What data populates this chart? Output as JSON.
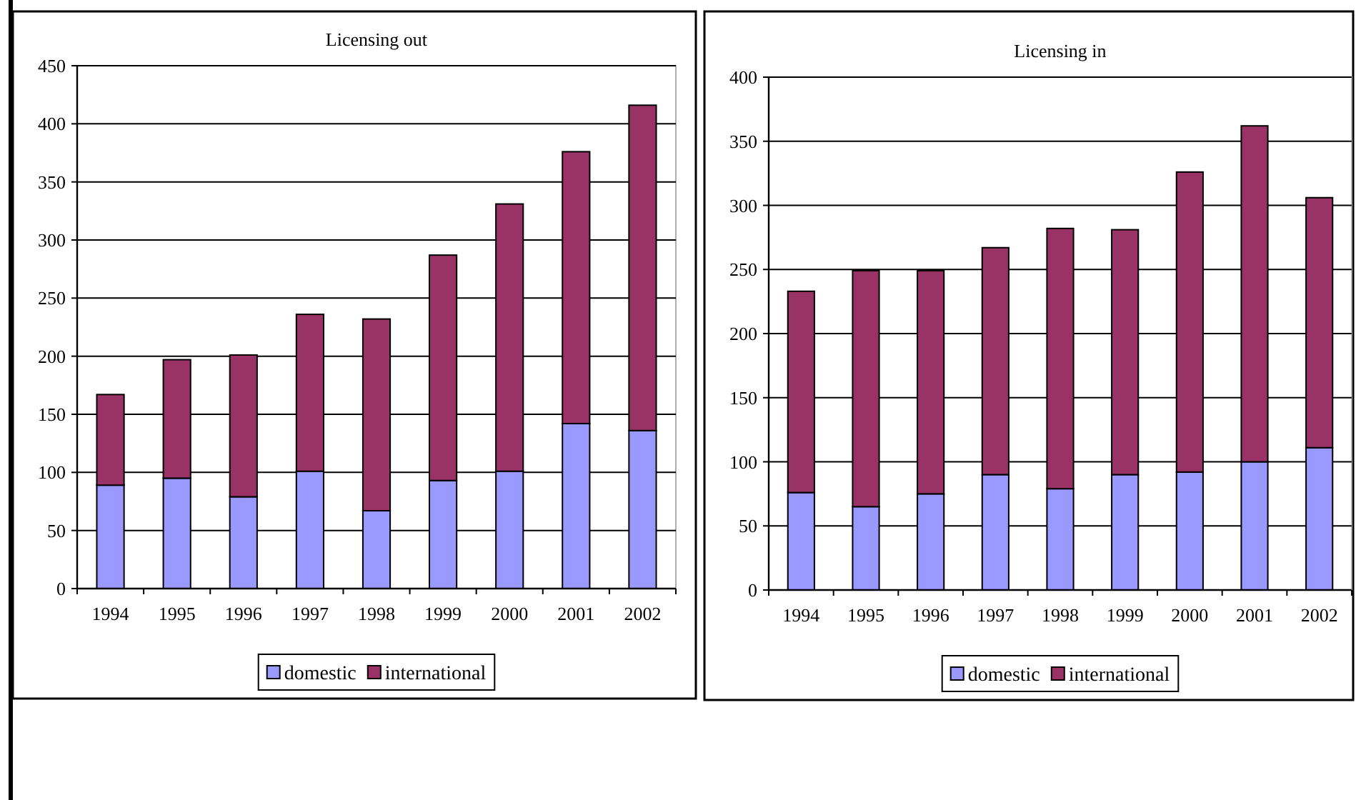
{
  "chart_data": [
    {
      "type": "bar",
      "title": "Licensing out",
      "categories": [
        "1994",
        "1995",
        "1996",
        "1997",
        "1998",
        "1999",
        "2000",
        "2001",
        "2002"
      ],
      "stacked": true,
      "series": [
        {
          "name": "domestic",
          "color": "#9999ff",
          "values": [
            89,
            95,
            79,
            101,
            67,
            93,
            101,
            142,
            136
          ]
        },
        {
          "name": "international",
          "color": "#993366",
          "values": [
            78,
            102,
            122,
            135,
            165,
            194,
            230,
            234,
            280
          ]
        }
      ],
      "ylim": [
        0,
        450
      ],
      "yticks": [
        0,
        50,
        100,
        150,
        200,
        250,
        300,
        350,
        400,
        450
      ],
      "grid": "y",
      "legend": "bottom"
    },
    {
      "type": "bar",
      "title": "Licensing in",
      "categories": [
        "1994",
        "1995",
        "1996",
        "1997",
        "1998",
        "1999",
        "2000",
        "2001",
        "2002"
      ],
      "stacked": true,
      "series": [
        {
          "name": "domestic",
          "color": "#9999ff",
          "values": [
            76,
            65,
            75,
            90,
            79,
            90,
            92,
            100,
            111
          ]
        },
        {
          "name": "international",
          "color": "#993366",
          "values": [
            157,
            184,
            174,
            177,
            203,
            191,
            234,
            262,
            195
          ]
        }
      ],
      "ylim": [
        0,
        400
      ],
      "yticks": [
        0,
        50,
        100,
        150,
        200,
        250,
        300,
        350,
        400
      ],
      "grid": "y",
      "legend": "bottom"
    }
  ]
}
